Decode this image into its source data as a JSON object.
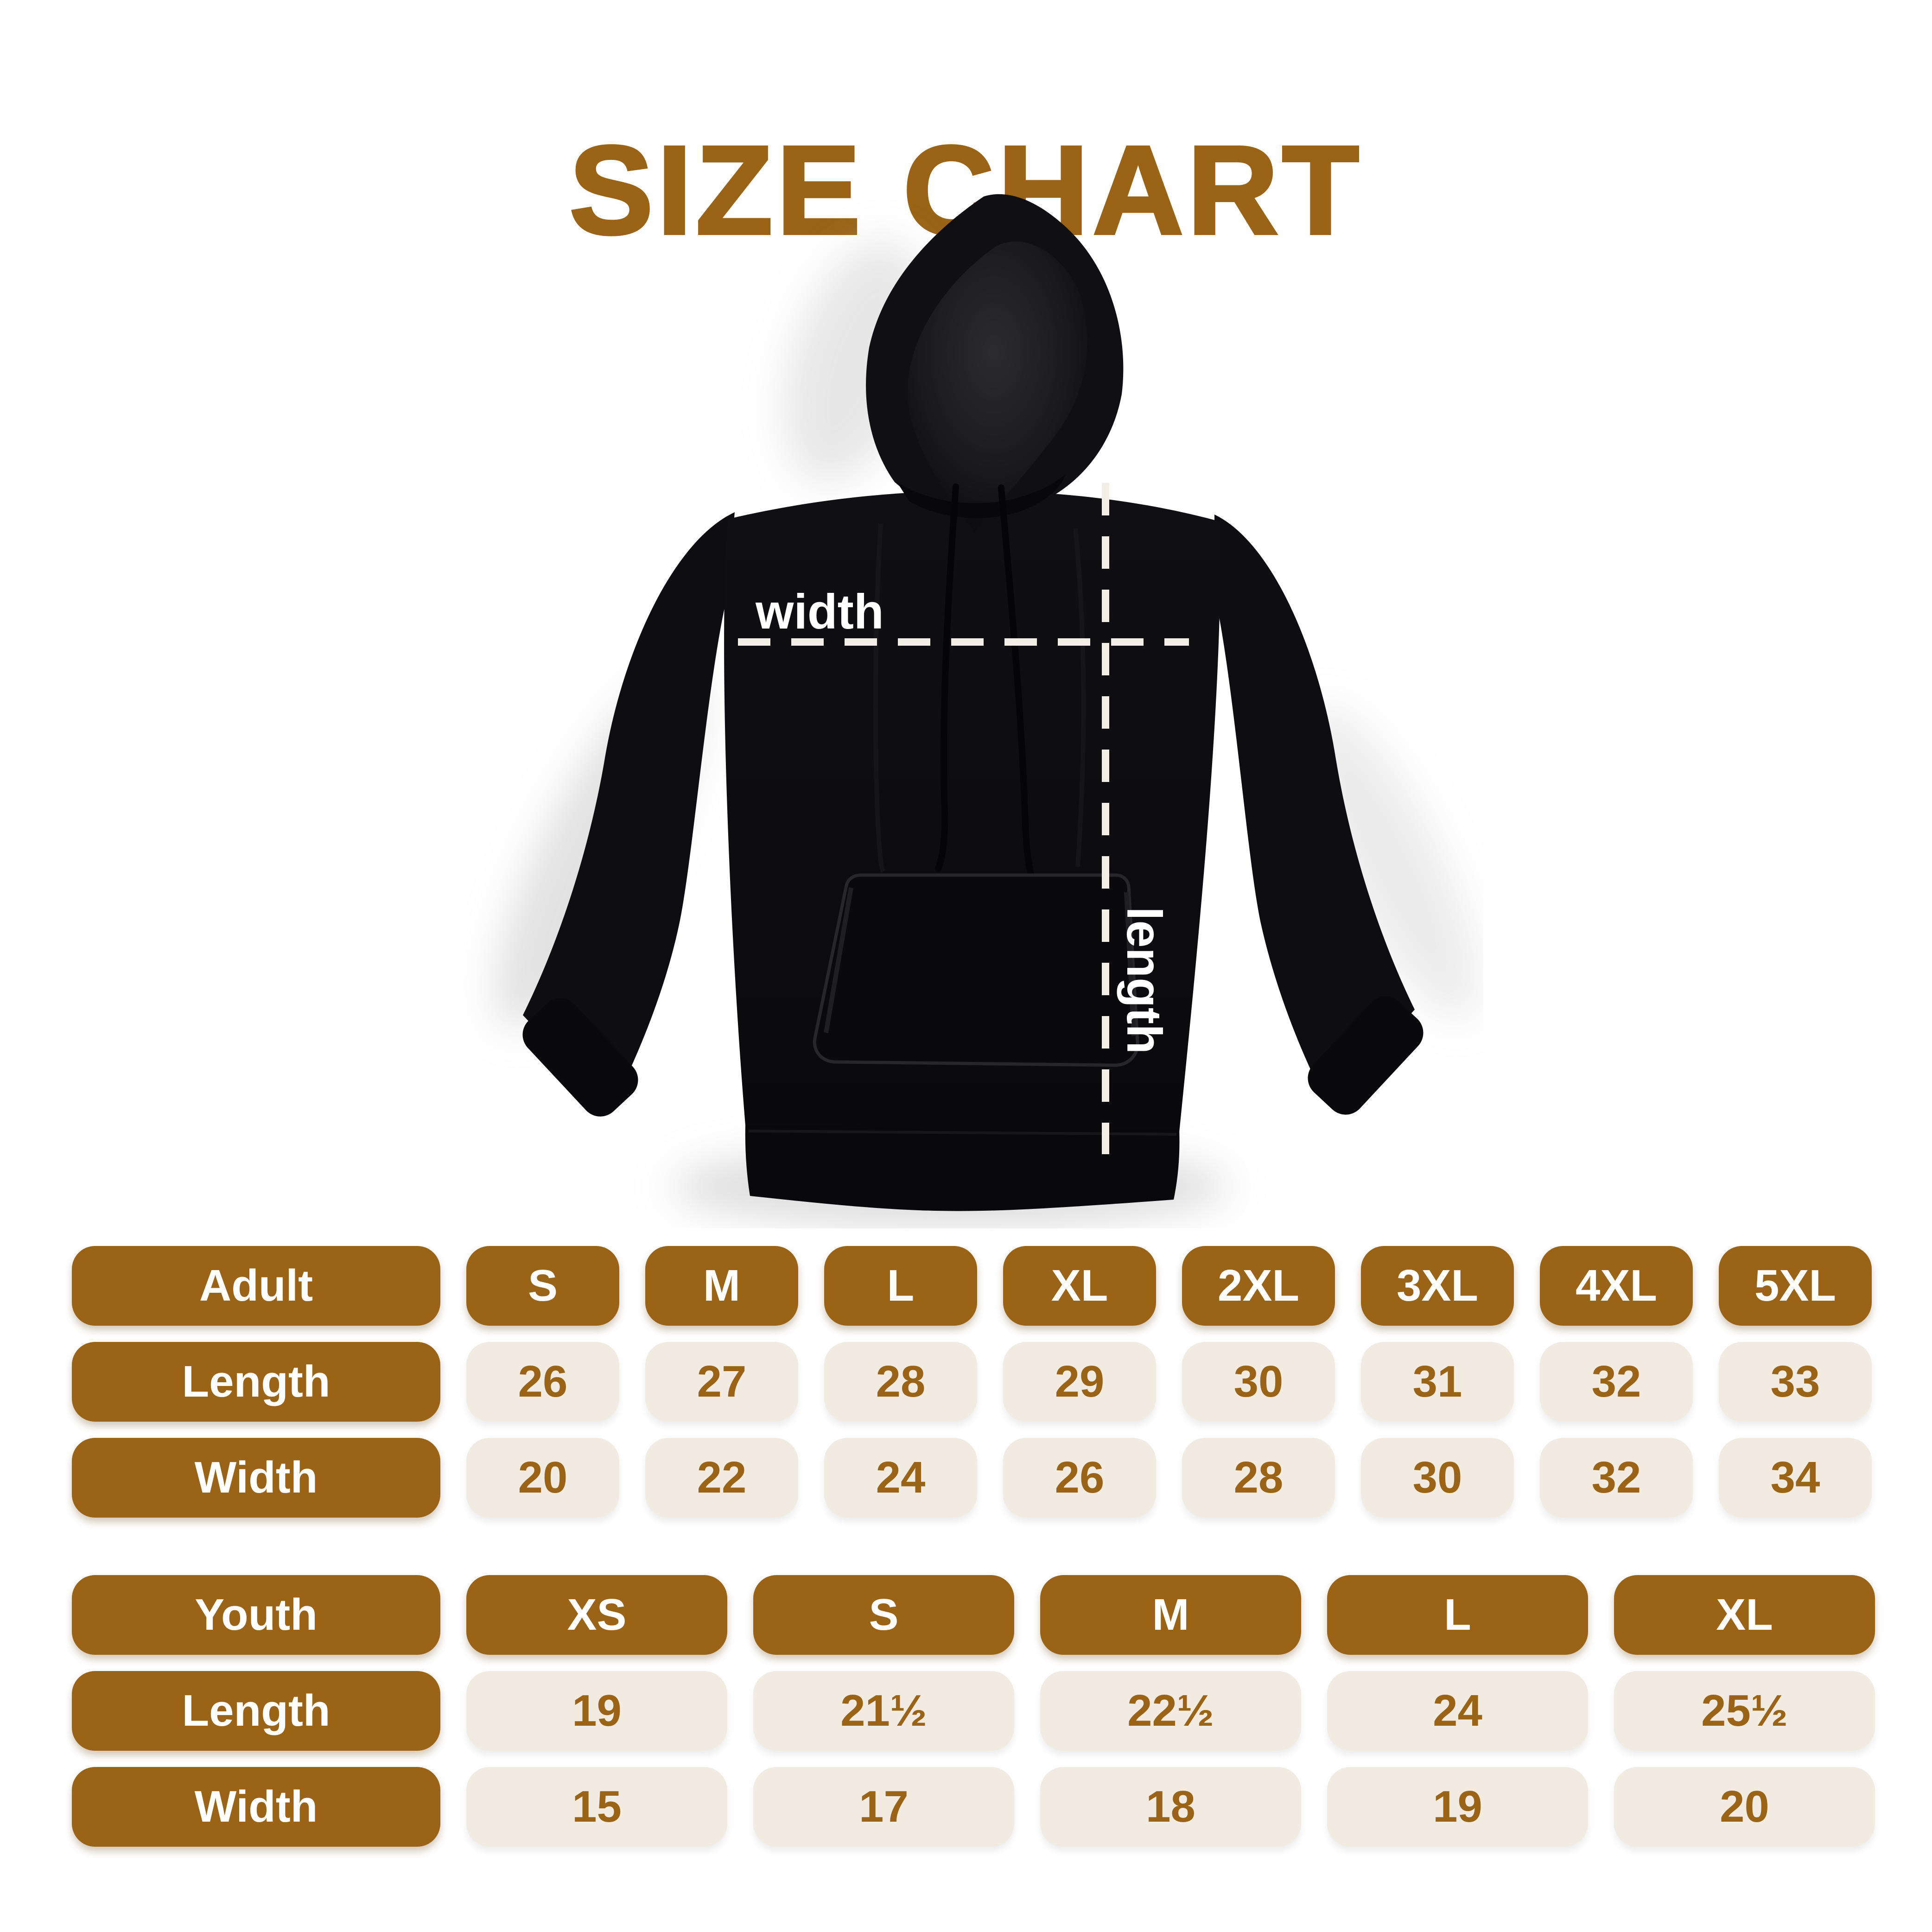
{
  "title": "SIZE CHART",
  "diagram": {
    "width_label": "width",
    "length_label": "length"
  },
  "chart_data": [
    {
      "type": "table",
      "group": "Adult",
      "columns": [
        "S",
        "M",
        "L",
        "XL",
        "2XL",
        "3XL",
        "4XL",
        "5XL"
      ],
      "rows": [
        {
          "label": "Length",
          "values": [
            "26",
            "27",
            "28",
            "29",
            "30",
            "31",
            "32",
            "33"
          ]
        },
        {
          "label": "Width",
          "values": [
            "20",
            "22",
            "24",
            "26",
            "28",
            "30",
            "32",
            "34"
          ]
        }
      ]
    },
    {
      "type": "table",
      "group": "Youth",
      "columns": [
        "XS",
        "S",
        "M",
        "L",
        "XL"
      ],
      "rows": [
        {
          "label": "Length",
          "values": [
            "19",
            "21½",
            "22½",
            "24",
            "25½"
          ]
        },
        {
          "label": "Width",
          "values": [
            "15",
            "17",
            "18",
            "19",
            "20"
          ]
        }
      ]
    }
  ],
  "colors": {
    "brown": "#9A6315",
    "beige": "#F1EBE2",
    "dash_cream": "#F3EEE5",
    "hoodie_black": "#0C0C0F"
  }
}
